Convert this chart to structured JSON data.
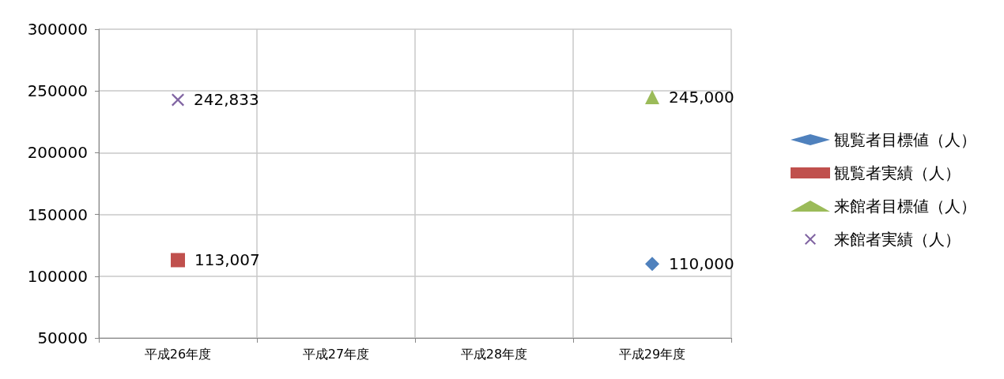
{
  "chart_data": {
    "type": "line",
    "categories": [
      "平成26年度",
      "平成27年度",
      "平成28年度",
      "平成29年度"
    ],
    "series": [
      {
        "name": "観覧者目標値（人）",
        "color": "#4f81bd",
        "marker": "diamond",
        "values": [
          null,
          null,
          null,
          110000
        ],
        "value_labels": [
          null,
          null,
          null,
          "110,000"
        ]
      },
      {
        "name": "観覧者実績（人）",
        "color": "#c0504d",
        "marker": "square",
        "values": [
          113007,
          null,
          null,
          null
        ],
        "value_labels": [
          "113,007",
          null,
          null,
          null
        ]
      },
      {
        "name": "来館者目標値（人）",
        "color": "#9bbb59",
        "marker": "triangle",
        "values": [
          null,
          null,
          null,
          245000
        ],
        "value_labels": [
          null,
          null,
          null,
          "245,000"
        ]
      },
      {
        "name": "来館者実績（人）",
        "color": "#8064a2",
        "marker": "cross",
        "values": [
          242833,
          null,
          null,
          null
        ],
        "value_labels": [
          "242,833",
          null,
          null,
          null
        ]
      }
    ],
    "ylim": [
      50000,
      300000
    ],
    "yticks": [
      50000,
      100000,
      150000,
      200000,
      250000,
      300000
    ],
    "grid": true,
    "legend": "right"
  }
}
